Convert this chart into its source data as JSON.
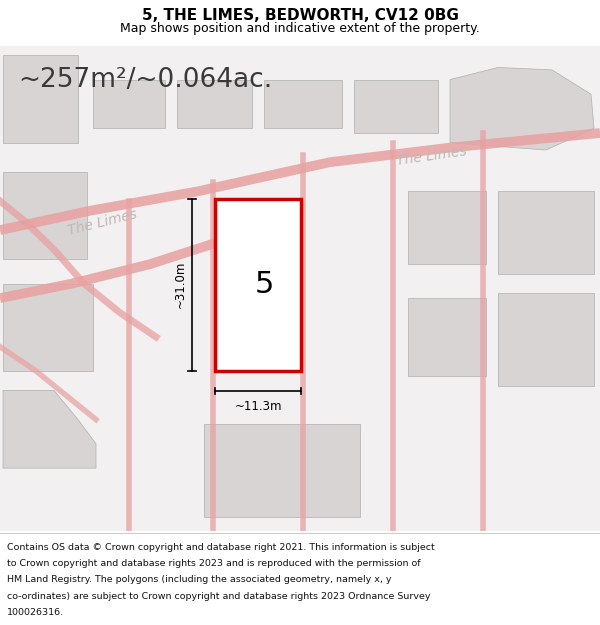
{
  "title": "5, THE LIMES, BEDWORTH, CV12 0BG",
  "subtitle": "Map shows position and indicative extent of the property.",
  "area_text": "~257m²/~0.064ac.",
  "plot_label": "5",
  "dim_width": "~11.3m",
  "dim_height": "~31.0m",
  "street_label": "The Limes",
  "footer_lines": [
    "Contains OS data © Crown copyright and database right 2021. This information is subject",
    "to Crown copyright and database rights 2023 and is reproduced with the permission of",
    "HM Land Registry. The polygons (including the associated geometry, namely x, y",
    "co-ordinates) are subject to Crown copyright and database rights 2023 Ordnance Survey",
    "100026316."
  ],
  "map_bg": "#f2f0f0",
  "plot_outline_color": "#cc0000",
  "road_color": "#e8a0a0",
  "building_color": "#d8d4d4",
  "title_color": "#000000",
  "street_label_color": "#c0b8b8"
}
